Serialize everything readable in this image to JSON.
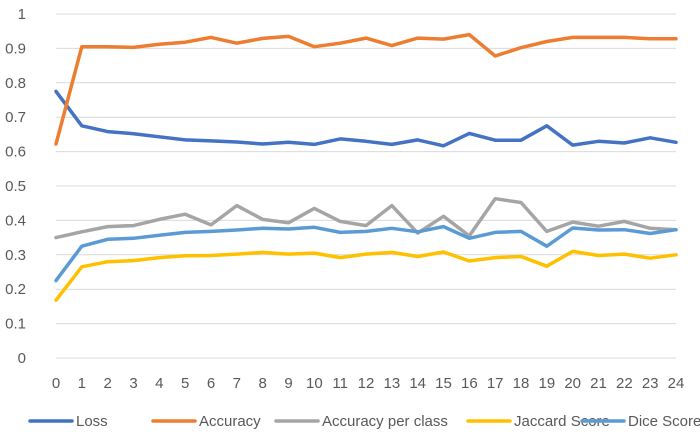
{
  "chart_data": {
    "type": "line",
    "title": "",
    "xlabel": "",
    "ylabel": "",
    "x": [
      0,
      1,
      2,
      3,
      4,
      5,
      6,
      7,
      8,
      9,
      10,
      11,
      12,
      13,
      14,
      15,
      16,
      17,
      18,
      19,
      20,
      21,
      22,
      23,
      24
    ],
    "ylim": [
      0,
      1
    ],
    "yticks": [
      0,
      0.1,
      0.2,
      0.3,
      0.4,
      0.5,
      0.6,
      0.7,
      0.8,
      0.9,
      1
    ],
    "ytick_labels": [
      "0",
      "0.1",
      "0.2",
      "0.3",
      "0.4",
      "0.5",
      "0.6",
      "0.7",
      "0.8",
      "0.9",
      "1"
    ],
    "grid": true,
    "legend_position": "bottom",
    "series": [
      {
        "name": "Loss",
        "color": "#4472C4",
        "values": [
          0.775,
          0.675,
          0.658,
          0.652,
          0.643,
          0.634,
          0.631,
          0.628,
          0.622,
          0.627,
          0.621,
          0.637,
          0.63,
          0.621,
          0.634,
          0.617,
          0.653,
          0.633,
          0.633,
          0.675,
          0.619,
          0.63,
          0.625,
          0.64,
          0.627
        ]
      },
      {
        "name": "Accuracy",
        "color": "#ED7D31",
        "values": [
          0.622,
          0.905,
          0.905,
          0.903,
          0.912,
          0.918,
          0.932,
          0.915,
          0.929,
          0.935,
          0.905,
          0.915,
          0.93,
          0.908,
          0.93,
          0.927,
          0.94,
          0.878,
          0.902,
          0.92,
          0.932,
          0.932,
          0.932,
          0.928,
          0.928
        ]
      },
      {
        "name": "Accuracy per class",
        "color": "#A5A5A5",
        "values": [
          0.35,
          0.367,
          0.382,
          0.385,
          0.403,
          0.418,
          0.387,
          0.443,
          0.403,
          0.393,
          0.435,
          0.397,
          0.385,
          0.443,
          0.363,
          0.412,
          0.355,
          0.463,
          0.452,
          0.368,
          0.395,
          0.383,
          0.397,
          0.377,
          0.373
        ]
      },
      {
        "name": "Jaccard Score",
        "color": "#FFC000",
        "values": [
          0.168,
          0.265,
          0.28,
          0.283,
          0.292,
          0.297,
          0.298,
          0.302,
          0.307,
          0.302,
          0.305,
          0.292,
          0.302,
          0.307,
          0.295,
          0.308,
          0.282,
          0.292,
          0.295,
          0.267,
          0.31,
          0.298,
          0.302,
          0.29,
          0.3
        ]
      },
      {
        "name": "Dice Score",
        "color": "#5B9BD5",
        "values": [
          0.225,
          0.325,
          0.345,
          0.348,
          0.357,
          0.365,
          0.368,
          0.372,
          0.377,
          0.375,
          0.38,
          0.365,
          0.368,
          0.377,
          0.367,
          0.382,
          0.348,
          0.365,
          0.368,
          0.325,
          0.378,
          0.372,
          0.373,
          0.362,
          0.373
        ]
      }
    ]
  }
}
